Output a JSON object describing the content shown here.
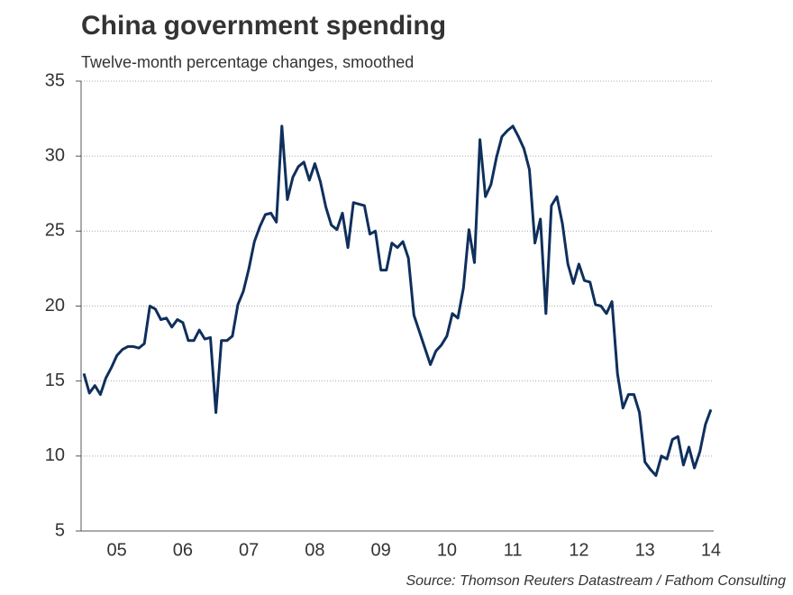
{
  "chart_data": {
    "type": "line",
    "title": "China government spending",
    "subtitle": "Twelve-month percentage changes, smoothed",
    "source": "Source: Thomson Reuters Datastream / Fathom Consulting",
    "categories": [
      null,
      null,
      null,
      null,
      null,
      null,
      "05",
      null,
      null,
      null,
      null,
      null,
      null,
      null,
      null,
      null,
      null,
      null,
      "06",
      null,
      null,
      null,
      null,
      null,
      null,
      null,
      null,
      null,
      null,
      null,
      "07",
      null,
      null,
      null,
      null,
      null,
      null,
      null,
      null,
      null,
      null,
      null,
      "08",
      null,
      null,
      null,
      null,
      null,
      null,
      null,
      null,
      null,
      null,
      null,
      "09",
      null,
      null,
      null,
      null,
      null,
      null,
      null,
      null,
      null,
      null,
      null,
      "10",
      null,
      null,
      null,
      null,
      null,
      null,
      null,
      null,
      null,
      null,
      null,
      "11",
      null,
      null,
      null,
      null,
      null,
      null,
      null,
      null,
      null,
      null,
      null,
      "12",
      null,
      null,
      null,
      null,
      null,
      null,
      null,
      null,
      null,
      null,
      null,
      "13",
      null,
      null,
      null,
      null,
      null,
      null,
      null,
      null,
      null,
      null,
      null,
      "14"
    ],
    "series": [
      {
        "name": "Government spending",
        "color": "#0f2f5c",
        "values": [
          15.5,
          14.2,
          14.7,
          14.1,
          15.2,
          15.9,
          16.7,
          17.1,
          17.3,
          17.3,
          17.2,
          17.5,
          20.0,
          19.8,
          19.1,
          19.2,
          18.6,
          19.1,
          18.9,
          17.7,
          17.7,
          18.4,
          17.8,
          17.9,
          12.9,
          17.7,
          17.7,
          18.0,
          20.1,
          21.0,
          22.5,
          24.3,
          25.3,
          26.1,
          26.2,
          25.6,
          32.0,
          27.1,
          28.6,
          29.3,
          29.6,
          28.4,
          29.5,
          28.3,
          26.6,
          25.4,
          25.1,
          26.2,
          23.9,
          26.9,
          26.8,
          26.7,
          24.8,
          25.0,
          22.4,
          22.4,
          24.2,
          23.9,
          24.3,
          23.2,
          19.4,
          18.3,
          17.2,
          16.1,
          17.0,
          17.4,
          18.0,
          19.5,
          19.2,
          21.2,
          25.1,
          22.9,
          31.1,
          27.3,
          28.1,
          29.9,
          31.3,
          31.7,
          32.0,
          31.3,
          30.5,
          29.1,
          24.2,
          25.8,
          19.5,
          26.7,
          27.3,
          25.5,
          22.8,
          21.5,
          22.8,
          21.7,
          21.6,
          20.1,
          20.0,
          19.5,
          20.3,
          15.5,
          13.2,
          14.1,
          14.1,
          12.9,
          9.6,
          9.1,
          8.7,
          10.0,
          9.8,
          11.1,
          11.3,
          9.4,
          10.6,
          9.2,
          10.3,
          12.1,
          13.1
        ]
      }
    ],
    "ylim": [
      5,
      35
    ],
    "yticks": [
      5,
      10,
      15,
      20,
      25,
      30,
      35
    ],
    "grid": true
  }
}
